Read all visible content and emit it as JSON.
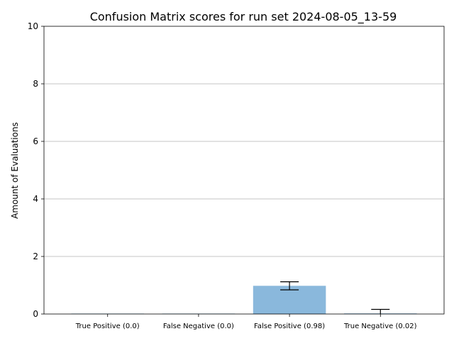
{
  "chart_data": {
    "type": "bar",
    "title": "Confusion Matrix scores for run set 2024-08-05_13-59",
    "xlabel": "",
    "ylabel": "Amount of Evaluations",
    "categories": [
      "True Positive (0.0)",
      "False Negative (0.0)",
      "False Positive (0.98)",
      "True Negative (0.02)"
    ],
    "values": [
      0.0,
      0.0,
      0.98,
      0.02
    ],
    "errors": [
      0.0,
      0.0,
      0.14,
      0.14
    ],
    "ylim": [
      0,
      10
    ],
    "yticks": [
      "0",
      "2",
      "4",
      "6",
      "8",
      "10"
    ],
    "grid": "y-axis on",
    "colors": {
      "bar": "#8ab8dc",
      "error": "#000000",
      "grid": "#b0b0b0"
    }
  }
}
